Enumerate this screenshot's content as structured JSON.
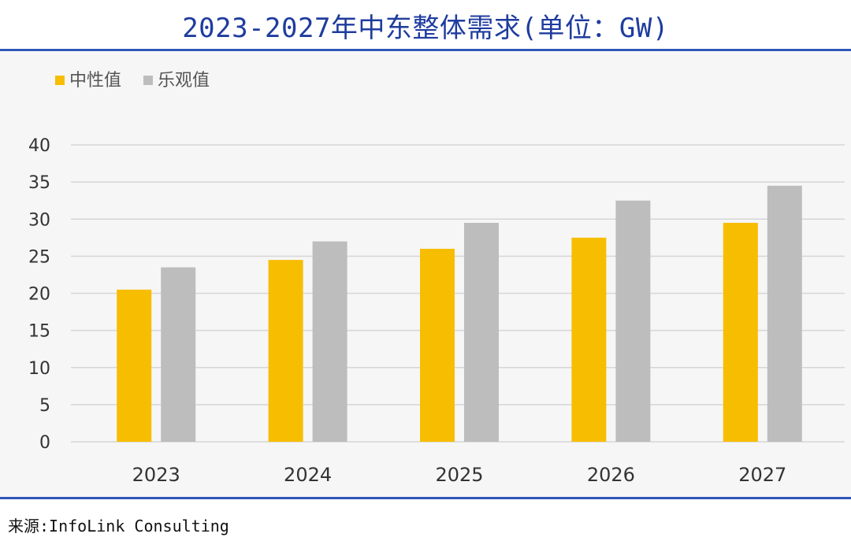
{
  "title": "2023-2027年中东整体需求(单位：GW)",
  "source": "来源:InfoLink Consulting",
  "colors": {
    "neutral": "#f7bd00",
    "optimistic": "#bdbdbd",
    "grid": "#d6d6d6",
    "title": "#1f3c9e"
  },
  "chart_data": {
    "type": "bar",
    "categories": [
      "2023",
      "2024",
      "2025",
      "2026",
      "2027"
    ],
    "series": [
      {
        "name": "中性值",
        "values": [
          20.5,
          24.5,
          26,
          27.5,
          29.5
        ]
      },
      {
        "name": "乐观值",
        "values": [
          23.5,
          27,
          29.5,
          32.5,
          34.5
        ]
      }
    ],
    "yticks": [
      0,
      5,
      10,
      15,
      20,
      25,
      30,
      35,
      40
    ],
    "ylim": [
      0,
      40
    ],
    "grid": true,
    "legend": "top-left"
  }
}
